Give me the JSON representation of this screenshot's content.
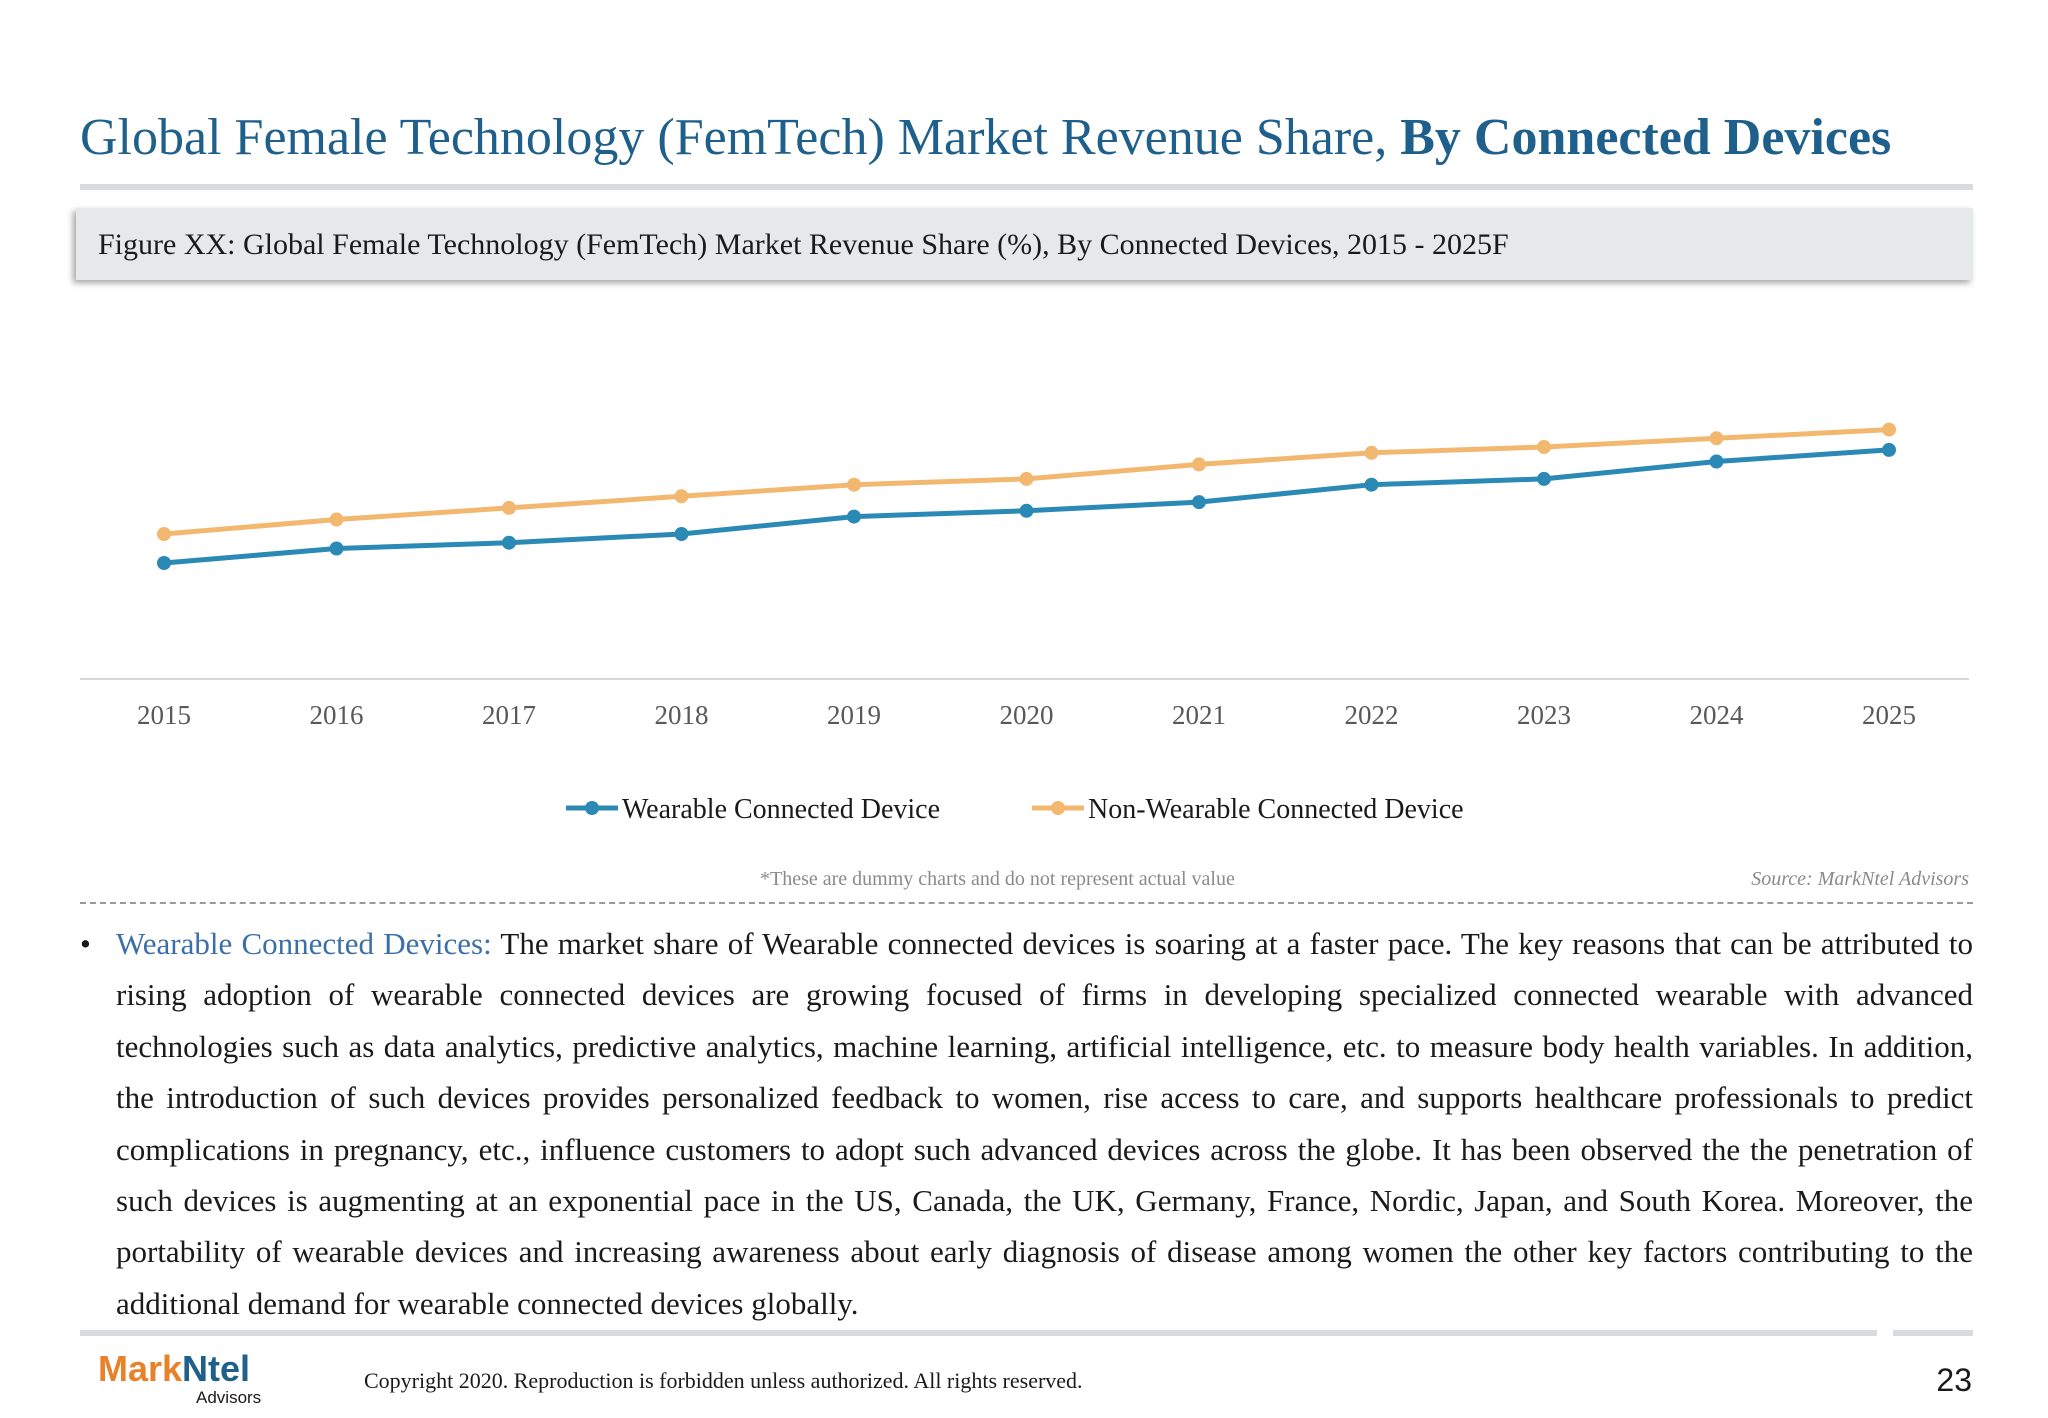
{
  "header": {
    "title_regular": "Global Female Technology (FemTech) Market Revenue Share, ",
    "title_bold": "By Connected Devices"
  },
  "figure": {
    "caption": "Figure XX: Global Female Technology (FemTech) Market Revenue Share (%), By Connected Devices, 2015 - 2025F"
  },
  "chart_data": {
    "type": "line",
    "title": "",
    "xlabel": "",
    "ylabel": "",
    "categories": [
      "2015",
      "2016",
      "2017",
      "2018",
      "2019",
      "2020",
      "2021",
      "2022",
      "2023",
      "2024",
      "2025"
    ],
    "series": [
      {
        "name": "Wearable Connected Device",
        "color": "#2a8ab5",
        "values": [
          40,
          45,
          47,
          50,
          56,
          58,
          61,
          67,
          69,
          75,
          79
        ]
      },
      {
        "name": "Non-Wearable Connected Device",
        "color": "#f3b870",
        "values": [
          50,
          55,
          59,
          63,
          67,
          69,
          74,
          78,
          80,
          83,
          86
        ]
      }
    ],
    "ylim": [
      0,
      100
    ],
    "grid": false,
    "y_axis_visible": false,
    "legend": "bottom"
  },
  "notes": {
    "dummy": "*These are dummy charts and do not represent actual value",
    "source": "Source: MarkNtel Advisors"
  },
  "body": {
    "lead": "Wearable Connected Devices:",
    "text": " The market share of Wearable connected devices is soaring at a faster pace. The key reasons that can be attributed to rising adoption of wearable connected devices are growing focused of firms in developing specialized connected wearable with advanced technologies such as data analytics, predictive analytics, machine learning, artificial intelligence, etc. to measure body health variables. In addition, the introduction of such devices provides personalized feedback to women, rise access to care, and supports healthcare professionals to predict complications in pregnancy, etc., influence customers to adopt such advanced devices across the globe. It has been observed the the penetration of such devices is augmenting at an exponential pace in the US, Canada, the UK, Germany, France, Nordic, Japan, and South Korea. Moreover, the portability of wearable devices and increasing awareness about early diagnosis of disease among women the other key factors contributing to the additional demand for wearable connected devices globally."
  },
  "footer": {
    "logo_part1": "Mark",
    "logo_part2": "Ntel",
    "logo_sub": "Advisors",
    "copyright": "Copyright 2020. Reproduction is forbidden unless authorized. All rights reserved.",
    "page_number": "23"
  }
}
